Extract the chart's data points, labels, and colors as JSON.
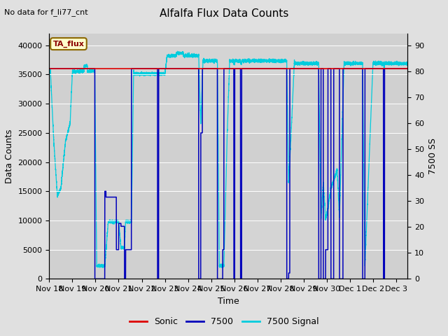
{
  "title": "Alfalfa Flux Data Counts",
  "subtitle": "No data for f_li77_cnt",
  "xlabel": "Time",
  "ylabel_left": "Data Counts",
  "ylabel_right": "7500 SS",
  "annotation": "TA_flux",
  "ylim_left": [
    0,
    42000
  ],
  "ylim_right": [
    0,
    94.5
  ],
  "yticks_left": [
    0,
    5000,
    10000,
    15000,
    20000,
    25000,
    30000,
    35000,
    40000
  ],
  "yticks_right": [
    0,
    10,
    20,
    30,
    40,
    50,
    60,
    70,
    80,
    90
  ],
  "xtick_labels": [
    "Nov 18",
    "Nov 19",
    "Nov 20",
    "Nov 21",
    "Nov 22",
    "Nov 23",
    "Nov 24",
    "Nov 25",
    "Nov 26",
    "Nov 27",
    "Nov 28",
    "Nov 29",
    "Nov 30",
    "Dec 1",
    "Dec 2",
    "Dec 3"
  ],
  "bg_color": "#e0e0e0",
  "plot_bg_color": "#d4d4d4",
  "band_light": "#e8e8e8",
  "band_dark": "#d0d0d0",
  "sonic_color": "#dd0000",
  "count7500_color": "#0000bb",
  "signal7500_color": "#00ccdd",
  "sonic_level": 36000,
  "count7500_level": 36000,
  "legend_labels": [
    "Sonic",
    "7500",
    "7500 Signal"
  ],
  "figsize": [
    6.4,
    4.8
  ],
  "dpi": 100
}
